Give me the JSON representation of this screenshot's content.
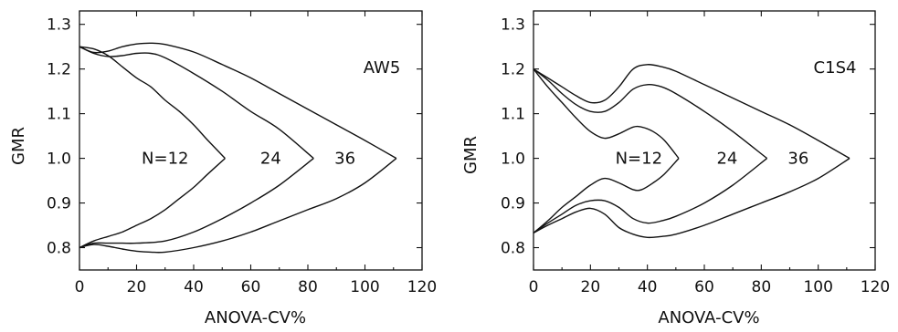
{
  "chart_data": [
    {
      "type": "line",
      "panel_label": "AW5",
      "xlabel": "ANOVA-CV%",
      "ylabel": "GMR",
      "xlim": [
        0,
        120
      ],
      "ylim": [
        0.75,
        1.33
      ],
      "xticks": [
        0,
        20,
        40,
        60,
        80,
        100,
        120
      ],
      "yticks": [
        "0.8",
        "0.9",
        "1.0",
        "1.1",
        "1.2",
        "1.3"
      ],
      "grid": false,
      "legend": "none",
      "series": [
        {
          "name": "N=12",
          "upper": [
            [
              0,
              1.25
            ],
            [
              5,
              1.245
            ],
            [
              10,
              1.23
            ],
            [
              15,
              1.205
            ],
            [
              20,
              1.18
            ],
            [
              25,
              1.16
            ],
            [
              30,
              1.13
            ],
            [
              35,
              1.105
            ],
            [
              40,
              1.075
            ],
            [
              45,
              1.04
            ],
            [
              51,
              1.0
            ]
          ],
          "lower": [
            [
              0,
              0.8
            ],
            [
              5,
              0.815
            ],
            [
              10,
              0.825
            ],
            [
              15,
              0.835
            ],
            [
              20,
              0.85
            ],
            [
              25,
              0.865
            ],
            [
              30,
              0.885
            ],
            [
              35,
              0.91
            ],
            [
              40,
              0.935
            ],
            [
              45,
              0.965
            ],
            [
              51,
              1.0
            ]
          ]
        },
        {
          "name": "24",
          "upper": [
            [
              0,
              1.25
            ],
            [
              5,
              1.235
            ],
            [
              10,
              1.228
            ],
            [
              15,
              1.23
            ],
            [
              20,
              1.235
            ],
            [
              25,
              1.235
            ],
            [
              30,
              1.225
            ],
            [
              40,
              1.19
            ],
            [
              50,
              1.15
            ],
            [
              60,
              1.105
            ],
            [
              70,
              1.065
            ],
            [
              82,
              1.0
            ]
          ],
          "lower": [
            [
              0,
              0.8
            ],
            [
              5,
              0.81
            ],
            [
              10,
              0.81
            ],
            [
              15,
              0.81
            ],
            [
              20,
              0.81
            ],
            [
              30,
              0.815
            ],
            [
              40,
              0.835
            ],
            [
              50,
              0.865
            ],
            [
              60,
              0.9
            ],
            [
              70,
              0.94
            ],
            [
              82,
              1.0
            ]
          ]
        },
        {
          "name": "36",
          "upper": [
            [
              0,
              1.25
            ],
            [
              5,
              1.237
            ],
            [
              10,
              1.24
            ],
            [
              15,
              1.25
            ],
            [
              20,
              1.256
            ],
            [
              25,
              1.258
            ],
            [
              30,
              1.255
            ],
            [
              40,
              1.238
            ],
            [
              50,
              1.21
            ],
            [
              60,
              1.18
            ],
            [
              70,
              1.145
            ],
            [
              80,
              1.11
            ],
            [
              90,
              1.075
            ],
            [
              100,
              1.04
            ],
            [
              111,
              1.0
            ]
          ],
          "lower": [
            [
              0,
              0.8
            ],
            [
              5,
              0.807
            ],
            [
              10,
              0.803
            ],
            [
              15,
              0.797
            ],
            [
              20,
              0.792
            ],
            [
              25,
              0.79
            ],
            [
              30,
              0.79
            ],
            [
              40,
              0.8
            ],
            [
              50,
              0.815
            ],
            [
              60,
              0.835
            ],
            [
              70,
              0.86
            ],
            [
              80,
              0.885
            ],
            [
              90,
              0.91
            ],
            [
              100,
              0.945
            ],
            [
              111,
              1.0
            ]
          ]
        }
      ],
      "annotations": [
        {
          "text": "N=12",
          "x": 30,
          "y": 1.0
        },
        {
          "text": "24",
          "x": 67,
          "y": 1.0
        },
        {
          "text": "36",
          "x": 93,
          "y": 1.0
        }
      ]
    },
    {
      "type": "line",
      "panel_label": "C1S4",
      "xlabel": "ANOVA-CV%",
      "ylabel": "GMR",
      "xlim": [
        0,
        120
      ],
      "ylim": [
        0.75,
        1.33
      ],
      "xticks": [
        0,
        20,
        40,
        60,
        80,
        100,
        120
      ],
      "yticks": [
        "0.8",
        "0.9",
        "1.0",
        "1.1",
        "1.2",
        "1.3"
      ],
      "grid": false,
      "legend": "none",
      "series": [
        {
          "name": "N=12",
          "upper": [
            [
              0,
              1.2
            ],
            [
              5,
              1.16
            ],
            [
              10,
              1.125
            ],
            [
              15,
              1.09
            ],
            [
              20,
              1.06
            ],
            [
              25,
              1.045
            ],
            [
              30,
              1.055
            ],
            [
              35,
              1.07
            ],
            [
              38,
              1.07
            ],
            [
              42,
              1.06
            ],
            [
              46,
              1.04
            ],
            [
              51,
              1.0
            ]
          ],
          "lower": [
            [
              0,
              0.833
            ],
            [
              5,
              0.86
            ],
            [
              10,
              0.89
            ],
            [
              15,
              0.915
            ],
            [
              20,
              0.94
            ],
            [
              25,
              0.955
            ],
            [
              30,
              0.945
            ],
            [
              35,
              0.93
            ],
            [
              38,
              0.93
            ],
            [
              42,
              0.945
            ],
            [
              46,
              0.965
            ],
            [
              51,
              1.0
            ]
          ]
        },
        {
          "name": "24",
          "upper": [
            [
              0,
              1.2
            ],
            [
              5,
              1.175
            ],
            [
              10,
              1.145
            ],
            [
              15,
              1.12
            ],
            [
              20,
              1.105
            ],
            [
              25,
              1.105
            ],
            [
              30,
              1.125
            ],
            [
              35,
              1.155
            ],
            [
              40,
              1.165
            ],
            [
              45,
              1.16
            ],
            [
              50,
              1.145
            ],
            [
              60,
              1.105
            ],
            [
              70,
              1.06
            ],
            [
              82,
              1.0
            ]
          ],
          "lower": [
            [
              0,
              0.833
            ],
            [
              5,
              0.855
            ],
            [
              10,
              0.875
            ],
            [
              15,
              0.895
            ],
            [
              20,
              0.905
            ],
            [
              25,
              0.905
            ],
            [
              30,
              0.89
            ],
            [
              35,
              0.865
            ],
            [
              40,
              0.855
            ],
            [
              45,
              0.86
            ],
            [
              50,
              0.87
            ],
            [
              60,
              0.9
            ],
            [
              70,
              0.94
            ],
            [
              82,
              1.0
            ]
          ]
        },
        {
          "name": "36",
          "upper": [
            [
              0,
              1.2
            ],
            [
              5,
              1.18
            ],
            [
              10,
              1.16
            ],
            [
              15,
              1.14
            ],
            [
              20,
              1.125
            ],
            [
              25,
              1.13
            ],
            [
              30,
              1.16
            ],
            [
              35,
              1.2
            ],
            [
              40,
              1.21
            ],
            [
              45,
              1.205
            ],
            [
              50,
              1.195
            ],
            [
              60,
              1.165
            ],
            [
              70,
              1.135
            ],
            [
              80,
              1.105
            ],
            [
              90,
              1.075
            ],
            [
              100,
              1.04
            ],
            [
              111,
              1.0
            ]
          ],
          "lower": [
            [
              0,
              0.833
            ],
            [
              5,
              0.85
            ],
            [
              10,
              0.865
            ],
            [
              15,
              0.88
            ],
            [
              20,
              0.888
            ],
            [
              25,
              0.875
            ],
            [
              30,
              0.845
            ],
            [
              35,
              0.83
            ],
            [
              40,
              0.823
            ],
            [
              45,
              0.825
            ],
            [
              50,
              0.83
            ],
            [
              60,
              0.85
            ],
            [
              70,
              0.875
            ],
            [
              80,
              0.9
            ],
            [
              90,
              0.925
            ],
            [
              100,
              0.955
            ],
            [
              111,
              1.0
            ]
          ]
        }
      ],
      "annotations": [
        {
          "text": "N=12",
          "x": 37,
          "y": 1.0
        },
        {
          "text": "24",
          "x": 68,
          "y": 1.0
        },
        {
          "text": "36",
          "x": 93,
          "y": 1.0
        }
      ]
    }
  ]
}
